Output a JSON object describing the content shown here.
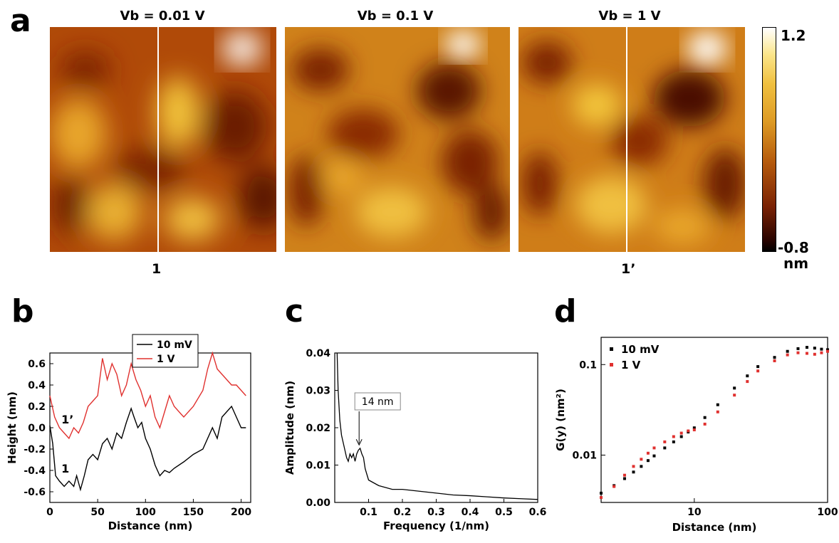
{
  "panel_a": {
    "letter": "a",
    "images": [
      {
        "title": "Vb = 0.01 V"
      },
      {
        "title": "Vb = 0.1 V"
      },
      {
        "title": "Vb = 1 V"
      }
    ],
    "line_label_left": "1",
    "line_label_right": "1’",
    "colorbar": {
      "max": "1.2",
      "min": "-0.8",
      "unit": "nm"
    }
  },
  "colors": {
    "black_series": "#000000",
    "red_series": "#e0312f"
  },
  "chart_data": [
    {
      "panel": "b",
      "type": "line",
      "xlabel": "Distance (nm)",
      "ylabel": "Height (nm)",
      "xlim": [
        0,
        210
      ],
      "ylim": [
        -0.7,
        0.7
      ],
      "xticks": [
        0,
        50,
        100,
        150,
        200
      ],
      "yticks": [
        -0.6,
        -0.4,
        -0.2,
        0.0,
        0.2,
        0.4,
        0.6
      ],
      "legend": "top-center",
      "series": [
        {
          "name": "10 mV",
          "color": "#000000",
          "label": "1",
          "x": [
            0,
            3,
            6,
            10,
            15,
            20,
            25,
            28,
            32,
            36,
            40,
            45,
            50,
            55,
            60,
            65,
            70,
            75,
            80,
            85,
            88,
            92,
            96,
            100,
            105,
            110,
            115,
            120,
            125,
            130,
            140,
            150,
            160,
            170,
            175,
            180,
            185,
            190,
            195,
            200,
            205
          ],
          "y": [
            0.02,
            -0.15,
            -0.45,
            -0.5,
            -0.55,
            -0.5,
            -0.55,
            -0.45,
            -0.58,
            -0.45,
            -0.3,
            -0.25,
            -0.3,
            -0.15,
            -0.1,
            -0.2,
            -0.05,
            -0.1,
            0.05,
            0.18,
            0.1,
            0.0,
            0.05,
            -0.1,
            -0.2,
            -0.35,
            -0.45,
            -0.4,
            -0.42,
            -0.38,
            -0.32,
            -0.25,
            -0.2,
            0.0,
            -0.1,
            0.1,
            0.15,
            0.2,
            0.1,
            0.0,
            0.0
          ]
        },
        {
          "name": "1 V",
          "color": "#e0312f",
          "label": "1’",
          "x": [
            0,
            5,
            10,
            15,
            20,
            25,
            30,
            35,
            40,
            45,
            50,
            55,
            60,
            65,
            70,
            75,
            80,
            85,
            90,
            95,
            100,
            105,
            110,
            115,
            120,
            125,
            130,
            140,
            150,
            160,
            165,
            170,
            175,
            180,
            185,
            190,
            195,
            200,
            205
          ],
          "y": [
            0.3,
            0.1,
            0.0,
            -0.05,
            -0.1,
            0.0,
            -0.05,
            0.05,
            0.2,
            0.25,
            0.3,
            0.65,
            0.45,
            0.6,
            0.5,
            0.3,
            0.4,
            0.6,
            0.45,
            0.35,
            0.2,
            0.3,
            0.1,
            0.0,
            0.15,
            0.3,
            0.2,
            0.1,
            0.2,
            0.35,
            0.55,
            0.7,
            0.55,
            0.5,
            0.45,
            0.4,
            0.4,
            0.35,
            0.3
          ]
        }
      ]
    },
    {
      "panel": "c",
      "type": "line",
      "xlabel": "Frequency (1/nm)",
      "ylabel": "Amplitude (nm)",
      "xlim": [
        0,
        0.6
      ],
      "ylim": [
        0,
        0.04
      ],
      "xticks": [
        0.1,
        0.2,
        0.3,
        0.4,
        0.5,
        0.6
      ],
      "yticks": [
        0.0,
        0.01,
        0.02,
        0.03,
        0.04
      ],
      "annotation": {
        "text": "14 nm",
        "x": 0.072,
        "y": 0.015
      },
      "series": [
        {
          "color": "#000000",
          "x": [
            0.007,
            0.01,
            0.015,
            0.02,
            0.025,
            0.03,
            0.035,
            0.04,
            0.045,
            0.05,
            0.055,
            0.06,
            0.065,
            0.07,
            0.075,
            0.08,
            0.085,
            0.09,
            0.1,
            0.11,
            0.12,
            0.13,
            0.15,
            0.17,
            0.2,
            0.25,
            0.3,
            0.35,
            0.4,
            0.45,
            0.5,
            0.55,
            0.6
          ],
          "y": [
            0.04,
            0.03,
            0.022,
            0.018,
            0.016,
            0.014,
            0.012,
            0.011,
            0.013,
            0.012,
            0.013,
            0.011,
            0.013,
            0.014,
            0.0145,
            0.013,
            0.012,
            0.009,
            0.006,
            0.0055,
            0.005,
            0.0045,
            0.004,
            0.0035,
            0.0035,
            0.003,
            0.0025,
            0.002,
            0.0018,
            0.0015,
            0.0012,
            0.001,
            0.0008
          ]
        }
      ]
    },
    {
      "panel": "d",
      "type": "scatter",
      "xlabel": "Distance (nm)",
      "ylabel": "G(y) (nm²)",
      "xscale": "log",
      "yscale": "log",
      "xlim": [
        2,
        100
      ],
      "ylim": [
        0.003,
        0.2
      ],
      "xticks": [
        10,
        100
      ],
      "yticks": [
        0.01,
        0.1
      ],
      "legend": "top-left",
      "series": [
        {
          "name": "10 mV",
          "color": "#000000",
          "x": [
            2,
            2.5,
            3,
            3.5,
            4,
            4.5,
            5,
            6,
            7,
            8,
            9,
            10,
            12,
            15,
            20,
            25,
            30,
            40,
            50,
            60,
            70,
            80,
            90,
            100
          ],
          "y": [
            0.0038,
            0.0046,
            0.0055,
            0.0065,
            0.0075,
            0.0087,
            0.0098,
            0.012,
            0.014,
            0.016,
            0.018,
            0.02,
            0.026,
            0.036,
            0.055,
            0.075,
            0.095,
            0.12,
            0.14,
            0.15,
            0.155,
            0.152,
            0.148,
            0.146
          ]
        },
        {
          "name": "1 V",
          "color": "#e0312f",
          "x": [
            2,
            2.5,
            3,
            3.5,
            4,
            4.5,
            5,
            6,
            7,
            8,
            9,
            10,
            12,
            15,
            20,
            25,
            30,
            40,
            50,
            60,
            70,
            80,
            90,
            100
          ],
          "y": [
            0.0034,
            0.0045,
            0.006,
            0.0075,
            0.009,
            0.0105,
            0.012,
            0.014,
            0.016,
            0.0175,
            0.0185,
            0.019,
            0.022,
            0.03,
            0.046,
            0.065,
            0.085,
            0.11,
            0.128,
            0.135,
            0.133,
            0.13,
            0.135,
            0.14
          ]
        }
      ]
    }
  ]
}
